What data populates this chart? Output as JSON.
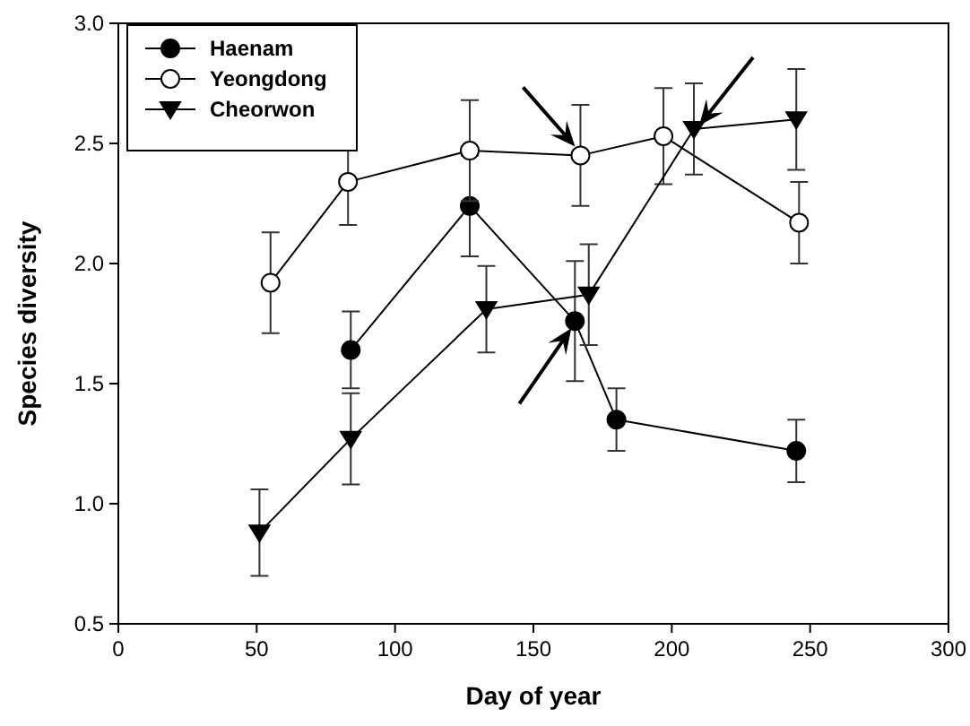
{
  "chart_data": {
    "type": "line",
    "xlabel": "Day of year",
    "ylabel": "Species diversity",
    "xlim": [
      0,
      300
    ],
    "xticks": [
      0,
      50,
      100,
      150,
      200,
      250,
      300
    ],
    "ylim": [
      0.5,
      3.0
    ],
    "yticks": [
      {
        "value": 0.5,
        "label": "0.5"
      },
      {
        "value": 1.0,
        "label": "1.0"
      },
      {
        "value": 1.5,
        "label": "1.5"
      },
      {
        "value": 2.0,
        "label": "2.0"
      },
      {
        "value": 2.5,
        "label": "2.5"
      },
      {
        "value": 3.0,
        "label": "3.0"
      }
    ],
    "grid": false,
    "legend": "top left",
    "line_style": "solid",
    "series": [
      {
        "name": "Haenam",
        "color": "#000000",
        "marker": "circle",
        "x": [
          84,
          127,
          165,
          180,
          245
        ],
        "values": [
          1.64,
          2.24,
          1.76,
          1.35,
          1.22
        ],
        "errors": [
          0.16,
          0.21,
          0.25,
          0.13,
          0.13
        ]
      },
      {
        "name": "Yeongdong",
        "color": "#000000",
        "marker": "circle",
        "x": [
          55,
          83,
          127,
          167,
          197,
          246
        ],
        "values": [
          1.92,
          2.34,
          2.47,
          2.45,
          2.53,
          2.17
        ],
        "errors": [
          0.21,
          0.18,
          0.21,
          0.21,
          0.2,
          0.17
        ]
      },
      {
        "name": "Cheorwon",
        "color": "#000000",
        "marker": "triangle",
        "x": [
          51,
          84,
          133,
          170,
          208,
          245
        ],
        "values": [
          0.88,
          1.27,
          1.81,
          1.87,
          2.56,
          2.6
        ],
        "errors": [
          0.18,
          0.19,
          0.18,
          0.21,
          0.19,
          0.21
        ]
      }
    ]
  }
}
